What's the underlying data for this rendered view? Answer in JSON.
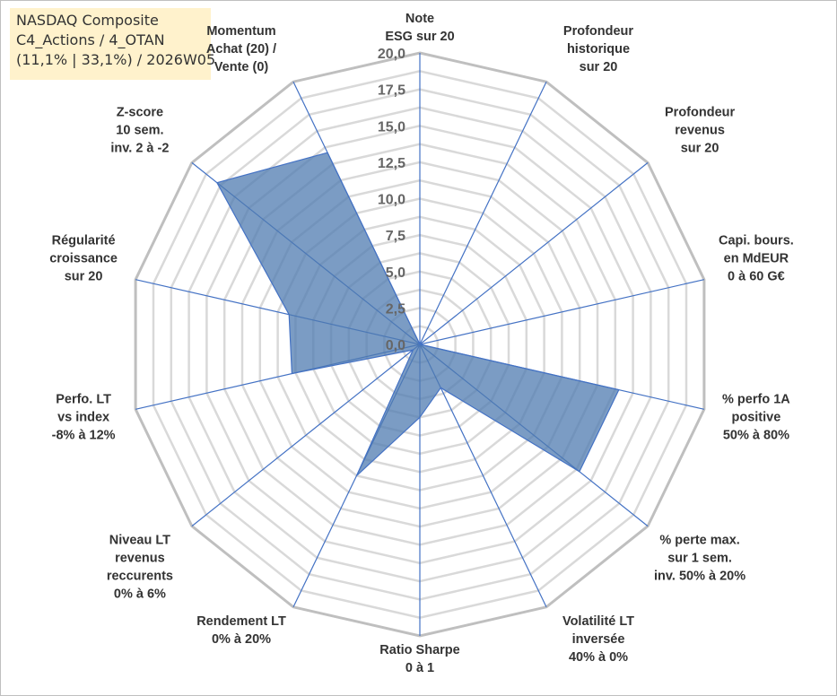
{
  "title_box": {
    "line1": "NASDAQ Composite",
    "line2": "C4_Actions / 4_OTAN",
    "line3": "(11,1% | 33,1%) / 2026W05"
  },
  "chart_data": {
    "type": "radar",
    "title": "NASDAQ Composite",
    "rmin": 0,
    "rmax": 20,
    "ticks": [
      "0,0",
      "2,5",
      "5,0",
      "7,5",
      "10,0",
      "12,5",
      "15,0",
      "17,5",
      "20,0"
    ],
    "tick_values": [
      0,
      2.5,
      5,
      7.5,
      10,
      12.5,
      15,
      17.5,
      20
    ],
    "grid_step": 1.25,
    "axes": [
      {
        "label": [
          "Note",
          "ESG sur 20"
        ],
        "value": 0
      },
      {
        "label": [
          "Profondeur",
          "historique",
          "sur 20"
        ],
        "value": 0
      },
      {
        "label": [
          "Profondeur",
          "revenus",
          "sur 20"
        ],
        "value": 0
      },
      {
        "label": [
          "Capi. bours.",
          "en MdEUR",
          "0 à 60 G€"
        ],
        "value": 0
      },
      {
        "label": [
          "% perfo 1A",
          "positive",
          "50% à 80%"
        ],
        "value": 14
      },
      {
        "label": [
          "% perte max.",
          "sur 1 sem.",
          "inv. 50% à 20%"
        ],
        "value": 14
      },
      {
        "label": [
          "Volatilité LT",
          "inversée",
          "40% à 0%"
        ],
        "value": 3.3
      },
      {
        "label": [
          "Ratio Sharpe",
          "0 à 1"
        ],
        "value": 5
      },
      {
        "label": [
          "Rendement LT",
          "0% à 20%"
        ],
        "value": 10
      },
      {
        "label": [
          "Niveau LT",
          "revenus",
          "reccurents",
          "0% à 6%"
        ],
        "value": 0.6
      },
      {
        "label": [
          "Perfo. LT",
          "vs index",
          "-8% à 12%"
        ],
        "value": 9
      },
      {
        "label": [
          "Régularité",
          "croissance",
          "sur 20"
        ],
        "value": 9.2
      },
      {
        "label": [
          "Z-score",
          "10 sem.",
          "inv. 2 à -2"
        ],
        "value": 17.8
      },
      {
        "label": [
          "Momentum",
          "Achat (20) /",
          "Vente (0)"
        ],
        "value": 14.6
      }
    ],
    "series": [
      {
        "name": "NASDAQ Composite"
      }
    ],
    "colors": {
      "fill": "#4f7bb0",
      "fill_opacity": "0.75",
      "series_line": "#4472c4",
      "spoke": "#4472c4",
      "outer_ring": "#bfbfbf",
      "inner_ring": "#d9d9d9",
      "tick_text": "#666666",
      "label_text": "#333333"
    }
  }
}
